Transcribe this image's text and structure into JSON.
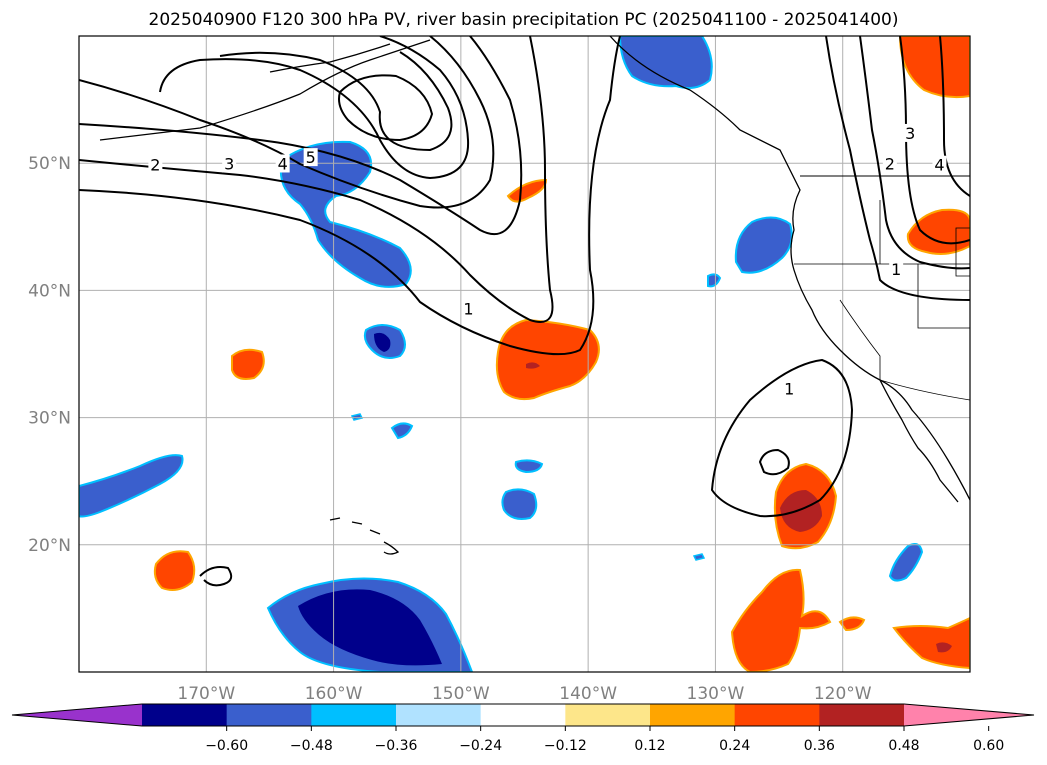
{
  "title": "2025040900 F120 300 hPa PV, river basin precipitation PC (2025041100 - 2025041400)",
  "map": {
    "lat_labels": [
      {
        "text": "50°N",
        "lat": 50
      },
      {
        "text": "40°N",
        "lat": 40
      },
      {
        "text": "30°N",
        "lat": 30
      },
      {
        "text": "20°N",
        "lat": 20
      }
    ],
    "lon_labels": [
      {
        "text": "170°W",
        "lon": -170
      },
      {
        "text": "160°W",
        "lon": -160
      },
      {
        "text": "150°W",
        "lon": -150
      },
      {
        "text": "140°W",
        "lon": -140
      },
      {
        "text": "130°W",
        "lon": -130
      },
      {
        "text": "120°W",
        "lon": -120
      }
    ],
    "extent": {
      "lon_min": -180,
      "lon_max": -110,
      "lat_min": 10,
      "lat_max": 60
    },
    "contour_labels": [
      {
        "text": "2",
        "lon": -174,
        "lat": 49.8
      },
      {
        "text": "3",
        "lon": -168.2,
        "lat": 49.9
      },
      {
        "text": "4",
        "lon": -164,
        "lat": 49.9
      },
      {
        "text": "5",
        "lon": -161.8,
        "lat": 50.4
      },
      {
        "text": "1",
        "lon": -149.4,
        "lat": 38.5
      },
      {
        "text": "1",
        "lon": -124.2,
        "lat": 32.2
      },
      {
        "text": "2",
        "lon": -116.3,
        "lat": 49.9
      },
      {
        "text": "3",
        "lon": -114.7,
        "lat": 52.3
      },
      {
        "text": "4",
        "lon": -112.4,
        "lat": 49.8
      },
      {
        "text": "1",
        "lon": -115.8,
        "lat": 41.6
      }
    ]
  },
  "colorbar": {
    "colors": [
      "#9932cc",
      "#00008b",
      "#3a5fcd",
      "#00bfff",
      "#b0e2ff",
      "#ffffff",
      "#fde68a",
      "#ffa500",
      "#ff4500",
      "#b22222",
      "#ff82ab"
    ],
    "tick_labels": [
      "−0.60",
      "−0.48",
      "−0.36",
      "−0.24",
      "−0.12",
      "0.12",
      "0.24",
      "0.36",
      "0.48",
      "0.60"
    ]
  }
}
